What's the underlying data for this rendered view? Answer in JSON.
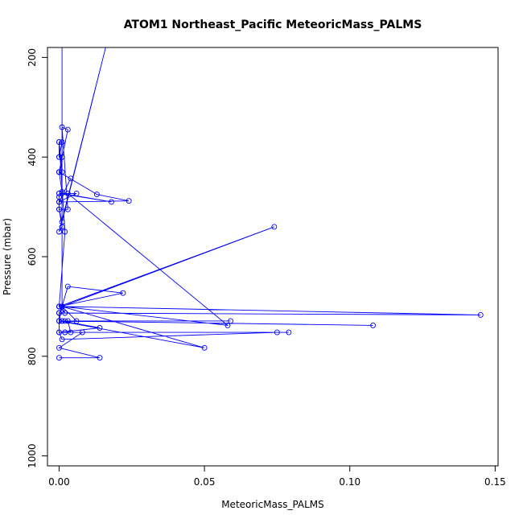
{
  "chart_data": {
    "type": "line",
    "title": "ATOM1 Northeast_Pacific MeteoricMass_PALMS",
    "xlabel": "MeteoricMass_PALMS",
    "ylabel": "Pressure (mbar)",
    "xlim": [
      -0.004,
      0.151
    ],
    "ylim": [
      1020,
      180
    ],
    "y_inverted": true,
    "xticks": [
      0.0,
      0.05,
      0.1,
      0.15
    ],
    "xtick_labels": [
      "0.00",
      "0.05",
      "0.10",
      "0.15"
    ],
    "yticks": [
      200,
      400,
      600,
      800,
      1000
    ],
    "ytick_labels": [
      "200",
      "400",
      "600",
      "800",
      "1000"
    ],
    "grid": false,
    "legend": "none",
    "line_color": "#0000ff",
    "series": [
      {
        "x": [
          0.0,
          0.014,
          0.0,
          0.008,
          0.002,
          0.004,
          0.003,
          0.002,
          0.001,
          0.0,
          0.0,
          0.001,
          0.003,
          0.022,
          0.0,
          0.001,
          0.006,
          0.059,
          0.001,
          0.014,
          0.0,
          0.079,
          0.002,
          0.075,
          0.001,
          0.0,
          0.0,
          0.145,
          0.001,
          0.0,
          0.108,
          0.0,
          0.05,
          0.001,
          0.0,
          0.002,
          0.001,
          0.074,
          0.0,
          0.001,
          0.058,
          0.003,
          0.0,
          0.001,
          0.018,
          0.0,
          0.006,
          0.0,
          0.0,
          0.004,
          0.0,
          0.024,
          0.013,
          0.0,
          0.003,
          0.001,
          0.003,
          0.0,
          0.001,
          0.016,
          0.0,
          0.001,
          0.0,
          0.0,
          0.001,
          0.0,
          0.001,
          0.0,
          0.001,
          0.0,
          0.001,
          0.0,
          0.001,
          0.0,
          0.0,
          0.002,
          0.0,
          0.001,
          0.001,
          0.0,
          0.0,
          0.001,
          0.016
        ],
        "y": [
          803,
          803,
          783,
          752,
          752,
          752,
          729,
          729,
          729,
          729,
          713,
          700,
          660,
          673,
          700,
          700,
          729,
          729,
          729,
          743,
          752,
          752,
          752,
          752,
          766,
          752,
          713,
          717,
          700,
          729,
          738,
          729,
          783,
          700,
          700,
          713,
          700,
          540,
          700,
          700,
          738,
          473,
          473,
          473,
          490,
          473,
          473,
          490,
          490,
          443,
          490,
          488,
          475,
          430,
          345,
          340,
          505,
          505,
          530,
          180,
          550,
          540,
          505,
          480,
          470,
          430,
          400,
          400,
          370,
          370,
          430,
          430,
          400,
          400,
          370,
          550,
          700,
          700,
          180,
          180,
          180,
          180,
          180
        ]
      }
    ]
  }
}
